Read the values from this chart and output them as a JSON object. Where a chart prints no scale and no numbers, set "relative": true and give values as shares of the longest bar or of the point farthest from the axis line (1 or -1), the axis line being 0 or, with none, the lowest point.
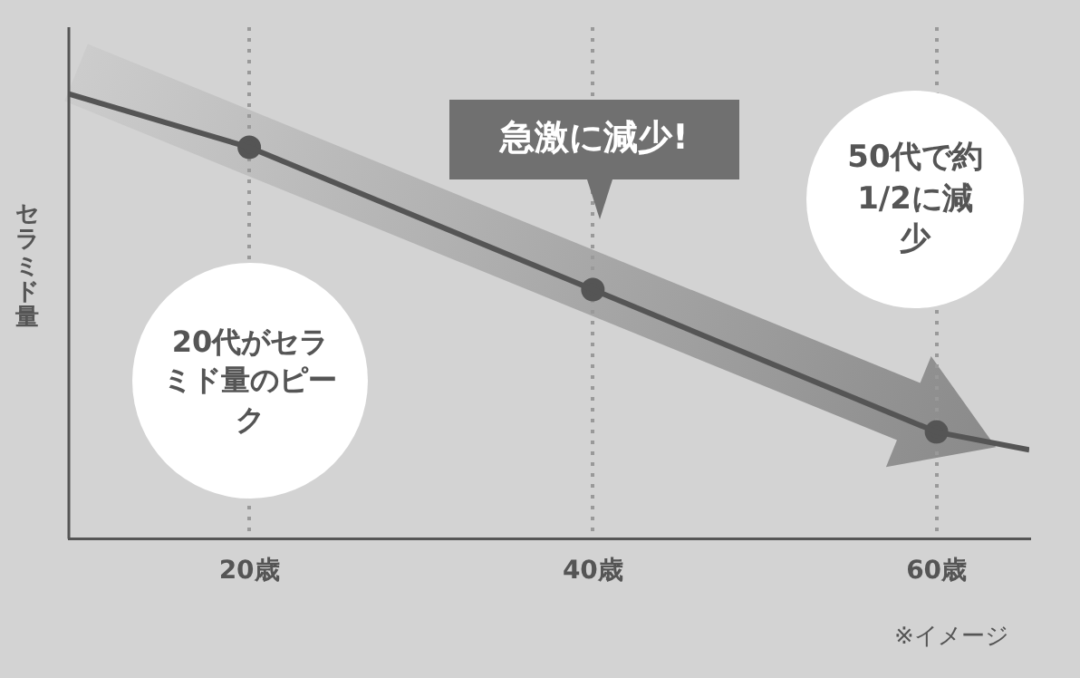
{
  "chart_data": {
    "type": "line",
    "ylabel": "セラミド量",
    "x": [
      9.5,
      20,
      40,
      60,
      65.4
    ],
    "xlim": [
      9.5,
      65.4
    ],
    "xticks": [
      {
        "value": 20,
        "label": "20歳"
      },
      {
        "value": 40,
        "label": "40歳"
      },
      {
        "value": 60,
        "label": "60歳"
      }
    ],
    "relative": true,
    "grid": "x",
    "series": [
      {
        "type": "line",
        "color": "#555555",
        "values": [
          1,
          0.88,
          0.56,
          0.24,
          0.2
        ],
        "marker": "none"
      },
      {
        "type": "scatter",
        "color": "#555555",
        "x": [
          20,
          40,
          60
        ],
        "values": [
          0.88,
          0.56,
          0.24
        ],
        "marker": "circle"
      }
    ],
    "annotations": [
      "20代がセラミド量のピーク",
      "急激に減少!",
      "50代で約1/2に減少",
      "※イメージ"
    ]
  }
}
